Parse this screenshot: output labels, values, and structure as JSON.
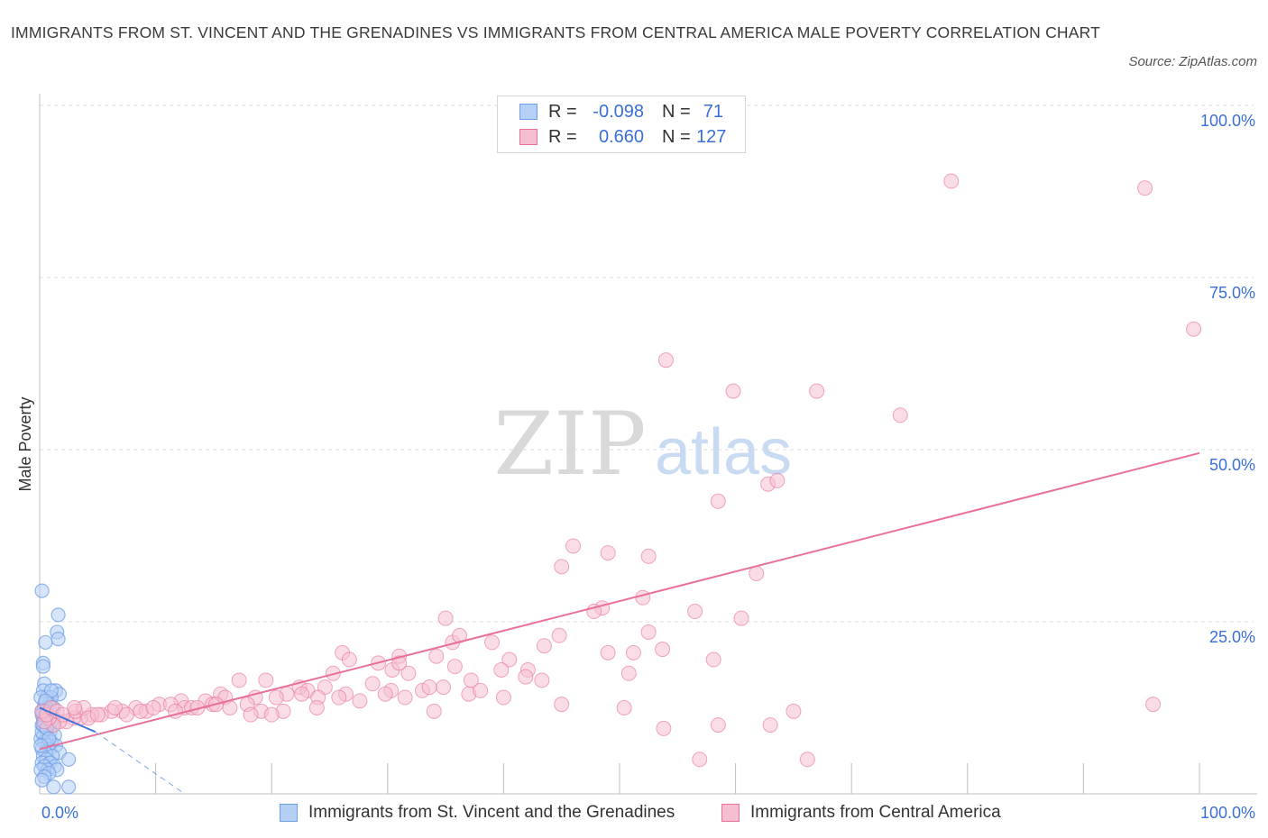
{
  "title": "IMMIGRANTS FROM ST. VINCENT AND THE GRENADINES VS IMMIGRANTS FROM CENTRAL AMERICA MALE POVERTY CORRELATION CHART",
  "source": "Source: ZipAtlas.com",
  "watermark": {
    "zip": "ZIP",
    "atlas": "atlas"
  },
  "colors": {
    "blue": "#6f9fe6",
    "blue_fill": "#b6cff5",
    "pink": "#e8709a",
    "pink_fill": "#f6bfd1",
    "axis_text": "#3a6fd8"
  },
  "legend_top": {
    "rows": [
      {
        "r_label": "R =",
        "r_value": "-0.098",
        "n_label": "N =",
        "n_value": "71"
      },
      {
        "r_label": "R =",
        "r_value": "0.660",
        "n_label": "N =",
        "n_value": "127"
      }
    ]
  },
  "legend_bottom": {
    "items": [
      {
        "label": "Immigrants from St. Vincent and the Grenadines"
      },
      {
        "label": "Immigrants from Central America"
      }
    ]
  },
  "chart_data": {
    "type": "scatter",
    "title": "IMMIGRANTS FROM ST. VINCENT AND THE GRENADINES VS IMMIGRANTS FROM CENTRAL AMERICA MALE POVERTY CORRELATION CHART",
    "xlabel": "",
    "ylabel": "Male Poverty",
    "xlim": [
      0,
      100
    ],
    "ylim": [
      0,
      100
    ],
    "x_tick_labels": [
      "0.0%",
      "100.0%"
    ],
    "y_tick_labels": [
      "25.0%",
      "50.0%",
      "75.0%",
      "100.0%"
    ],
    "y_ticks": [
      25,
      50,
      75,
      100
    ],
    "grid": true,
    "legend_position": "top-center",
    "series": [
      {
        "name": "Immigrants from St. Vincent and the Grenadines",
        "color": "#6f9fe6",
        "R": -0.098,
        "N": 71,
        "points": [
          [
            0.2,
            29.5
          ],
          [
            1.6,
            26.0
          ],
          [
            1.5,
            23.5
          ],
          [
            1.6,
            22.5
          ],
          [
            0.5,
            22.0
          ],
          [
            0.3,
            19.0
          ],
          [
            0.3,
            18.5
          ],
          [
            0.4,
            16.0
          ],
          [
            1.4,
            15.0
          ],
          [
            1.7,
            14.5
          ],
          [
            0.3,
            15.0
          ],
          [
            0.6,
            14.0
          ],
          [
            1.0,
            14.0
          ],
          [
            0.4,
            13.0
          ],
          [
            0.6,
            12.5
          ],
          [
            0.2,
            12.0
          ],
          [
            0.5,
            11.5
          ],
          [
            0.9,
            11.5
          ],
          [
            1.2,
            11.0
          ],
          [
            0.3,
            11.0
          ],
          [
            0.7,
            10.5
          ],
          [
            1.1,
            10.0
          ],
          [
            0.2,
            10.0
          ],
          [
            0.5,
            9.5
          ],
          [
            0.9,
            9.0
          ],
          [
            1.3,
            8.5
          ],
          [
            0.3,
            8.5
          ],
          [
            0.6,
            8.0
          ],
          [
            0.1,
            8.0
          ],
          [
            1.0,
            7.5
          ],
          [
            0.4,
            7.5
          ],
          [
            0.7,
            7.0
          ],
          [
            1.4,
            7.0
          ],
          [
            0.2,
            6.5
          ],
          [
            0.8,
            6.5
          ],
          [
            1.7,
            6.0
          ],
          [
            0.5,
            6.0
          ],
          [
            0.3,
            5.5
          ],
          [
            1.1,
            5.5
          ],
          [
            0.6,
            5.0
          ],
          [
            2.5,
            5.0
          ],
          [
            0.2,
            4.5
          ],
          [
            0.9,
            4.5
          ],
          [
            1.3,
            4.0
          ],
          [
            0.4,
            4.0
          ],
          [
            0.7,
            3.5
          ],
          [
            1.5,
            3.5
          ],
          [
            0.1,
            3.5
          ],
          [
            0.8,
            3.0
          ],
          [
            0.4,
            2.5
          ],
          [
            0.2,
            2.0
          ],
          [
            1.2,
            1.0
          ],
          [
            2.5,
            1.0
          ],
          [
            0.3,
            12.0
          ],
          [
            0.8,
            13.0
          ],
          [
            1.0,
            15.0
          ],
          [
            0.1,
            14.0
          ],
          [
            0.5,
            13.5
          ],
          [
            0.2,
            9.0
          ],
          [
            0.6,
            10.5
          ],
          [
            0.4,
            11.0
          ],
          [
            0.9,
            12.0
          ],
          [
            0.3,
            10.0
          ],
          [
            0.7,
            11.5
          ],
          [
            1.2,
            12.5
          ],
          [
            0.5,
            12.0
          ],
          [
            0.2,
            11.5
          ],
          [
            1.0,
            10.5
          ],
          [
            0.6,
            9.5
          ],
          [
            0.8,
            8.0
          ],
          [
            0.1,
            7.0
          ]
        ],
        "trend": {
          "x": [
            0,
            4.8
          ],
          "y": [
            12.5,
            9.0
          ],
          "extension_x": [
            4.8,
            12.5
          ],
          "extension_y": [
            9.0,
            0.0
          ]
        }
      },
      {
        "name": "Immigrants from Central America",
        "color": "#e8709a",
        "R": 0.66,
        "N": 127,
        "points": [
          [
            78.6,
            89.0
          ],
          [
            95.3,
            88.0
          ],
          [
            99.5,
            67.5
          ],
          [
            54.0,
            63.0
          ],
          [
            59.8,
            58.5
          ],
          [
            67.0,
            58.5
          ],
          [
            74.2,
            55.0
          ],
          [
            62.8,
            45.0
          ],
          [
            63.6,
            45.5
          ],
          [
            58.5,
            42.5
          ],
          [
            46.0,
            36.0
          ],
          [
            49.0,
            35.0
          ],
          [
            52.5,
            34.5
          ],
          [
            45.0,
            33.0
          ],
          [
            61.8,
            32.0
          ],
          [
            52.0,
            28.5
          ],
          [
            48.5,
            27.0
          ],
          [
            47.8,
            26.5
          ],
          [
            56.5,
            26.5
          ],
          [
            60.5,
            25.5
          ],
          [
            35.0,
            25.5
          ],
          [
            52.5,
            23.5
          ],
          [
            44.8,
            23.0
          ],
          [
            39.0,
            22.0
          ],
          [
            35.6,
            22.0
          ],
          [
            43.5,
            21.5
          ],
          [
            53.7,
            21.0
          ],
          [
            49.0,
            20.5
          ],
          [
            51.2,
            20.5
          ],
          [
            34.2,
            20.0
          ],
          [
            31.0,
            20.0
          ],
          [
            58.1,
            19.5
          ],
          [
            40.5,
            19.5
          ],
          [
            42.1,
            18.0
          ],
          [
            39.8,
            18.0
          ],
          [
            26.1,
            20.5
          ],
          [
            26.7,
            19.5
          ],
          [
            29.2,
            19.0
          ],
          [
            30.4,
            18.0
          ],
          [
            41.9,
            17.0
          ],
          [
            31.8,
            17.5
          ],
          [
            35.8,
            18.5
          ],
          [
            25.3,
            17.5
          ],
          [
            43.3,
            16.5
          ],
          [
            37.2,
            16.5
          ],
          [
            34.8,
            15.5
          ],
          [
            17.2,
            16.5
          ],
          [
            19.5,
            16.5
          ],
          [
            28.7,
            16.0
          ],
          [
            22.4,
            15.5
          ],
          [
            23.1,
            15.0
          ],
          [
            24.6,
            15.5
          ],
          [
            26.4,
            14.5
          ],
          [
            21.3,
            14.5
          ],
          [
            33.0,
            15.0
          ],
          [
            30.3,
            15.0
          ],
          [
            15.6,
            14.5
          ],
          [
            16.0,
            14.0
          ],
          [
            18.6,
            14.0
          ],
          [
            20.4,
            14.0
          ],
          [
            22.6,
            14.5
          ],
          [
            24.0,
            14.0
          ],
          [
            25.8,
            14.0
          ],
          [
            14.3,
            13.5
          ],
          [
            12.2,
            13.5
          ],
          [
            14.9,
            13.0
          ],
          [
            10.3,
            13.0
          ],
          [
            11.3,
            13.0
          ],
          [
            12.5,
            12.5
          ],
          [
            13.1,
            12.5
          ],
          [
            16.4,
            12.5
          ],
          [
            17.9,
            13.0
          ],
          [
            19.1,
            12.0
          ],
          [
            21.0,
            12.0
          ],
          [
            23.9,
            12.5
          ],
          [
            8.3,
            12.5
          ],
          [
            9.2,
            12.0
          ],
          [
            7.1,
            12.0
          ],
          [
            6.2,
            12.0
          ],
          [
            5.3,
            11.5
          ],
          [
            4.5,
            11.5
          ],
          [
            3.5,
            11.0
          ],
          [
            2.9,
            11.0
          ],
          [
            2.3,
            10.5
          ],
          [
            1.7,
            10.5
          ],
          [
            1.2,
            10.0
          ],
          [
            0.8,
            11.0
          ],
          [
            0.4,
            10.5
          ],
          [
            0.2,
            12.0
          ],
          [
            0.6,
            11.5
          ],
          [
            1.0,
            12.5
          ],
          [
            1.5,
            12.0
          ],
          [
            2.0,
            11.5
          ],
          [
            3.1,
            12.0
          ],
          [
            3.8,
            12.5
          ],
          [
            4.2,
            11.0
          ],
          [
            5.0,
            11.5
          ],
          [
            6.5,
            12.5
          ],
          [
            7.5,
            11.5
          ],
          [
            8.7,
            12.0
          ],
          [
            9.8,
            12.5
          ],
          [
            11.7,
            12.0
          ],
          [
            13.6,
            12.5
          ],
          [
            15.2,
            13.0
          ],
          [
            18.2,
            11.5
          ],
          [
            27.6,
            13.5
          ],
          [
            29.8,
            14.5
          ],
          [
            31.5,
            14.0
          ],
          [
            33.6,
            15.5
          ],
          [
            37.0,
            14.5
          ],
          [
            38.0,
            15.0
          ],
          [
            40.0,
            14.0
          ],
          [
            45.0,
            13.0
          ],
          [
            34.0,
            12.0
          ],
          [
            20.0,
            11.5
          ],
          [
            31.0,
            19.0
          ],
          [
            36.2,
            23.0
          ],
          [
            50.8,
            17.5
          ],
          [
            53.8,
            9.5
          ],
          [
            58.5,
            10.0
          ],
          [
            63.0,
            10.0
          ],
          [
            65.0,
            12.0
          ],
          [
            50.4,
            12.5
          ],
          [
            56.9,
            5.0
          ],
          [
            66.2,
            5.0
          ],
          [
            96.0,
            13.0
          ],
          [
            3.0,
            12.5
          ]
        ],
        "trend": {
          "x": [
            0,
            100
          ],
          "y": [
            6.5,
            49.5
          ]
        }
      }
    ]
  }
}
